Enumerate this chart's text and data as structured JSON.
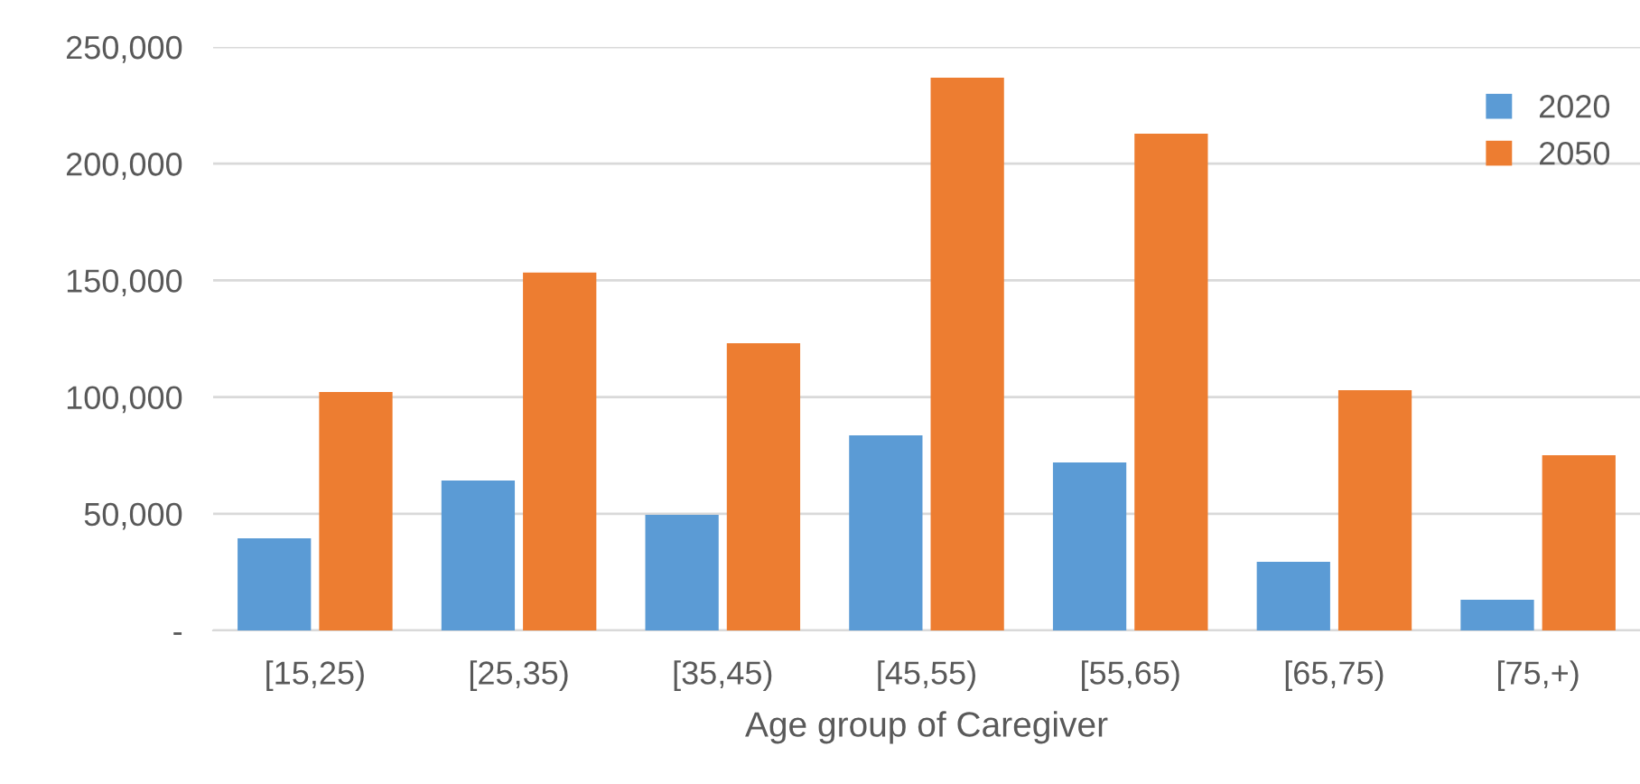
{
  "chart_data": {
    "type": "bar",
    "xlabel": "Age group of Caregiver",
    "categories": [
      "[15,25)",
      "[25,35)",
      "[35,45)",
      "[45,55)",
      "[55,65)",
      "[65,75)",
      "[75,+)"
    ],
    "series": [
      {
        "name": "2020",
        "color": "#5b9bd5",
        "values": [
          39500,
          64200,
          49500,
          83600,
          72000,
          29400,
          13200
        ]
      },
      {
        "name": "2050",
        "color": "#ed7d31",
        "values": [
          102200,
          153300,
          123100,
          236800,
          212800,
          102900,
          75100
        ]
      }
    ],
    "ylim": [
      0,
      250000
    ],
    "yticks": [
      {
        "value": 0,
        "label": "-"
      },
      {
        "value": 50000,
        "label": "50,000"
      },
      {
        "value": 100000,
        "label": "100,000"
      },
      {
        "value": 150000,
        "label": "150,000"
      },
      {
        "value": 200000,
        "label": "200,000"
      },
      {
        "value": 250000,
        "label": "250,000"
      }
    ],
    "grid": "y",
    "legend": "top right"
  }
}
